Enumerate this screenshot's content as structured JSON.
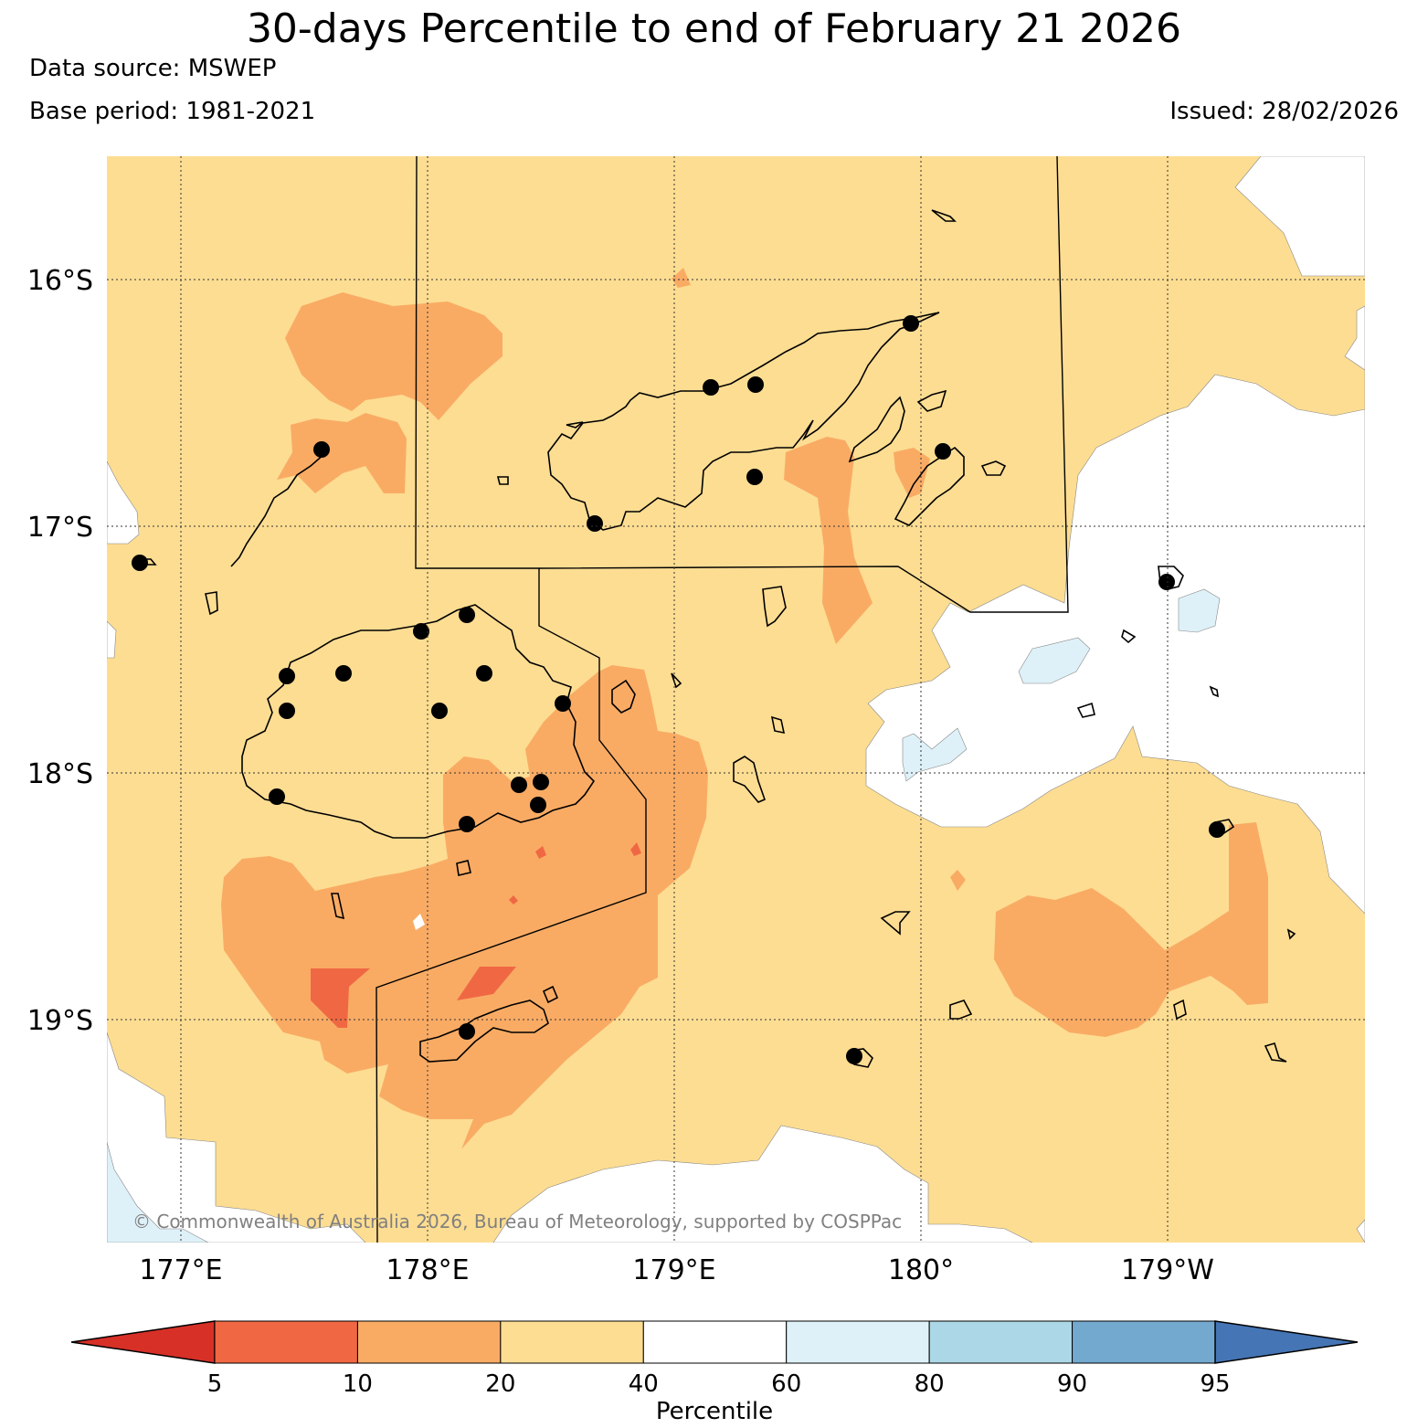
{
  "header": {
    "title": "30-days Percentile to end of February 21 2026",
    "data_source": "Data source: MSWEP",
    "base_period": "Base period: 1981-2021",
    "issued": "Issued: 28/02/2026"
  },
  "map": {
    "lat_labels": [
      "16°S",
      "17°S",
      "18°S",
      "19°S"
    ],
    "lon_labels": [
      "177°E",
      "178°E",
      "179°E",
      "180°",
      "179°W"
    ],
    "copyright": "© Commonwealth of Australia 2026, Bureau of Meteorology, supported by COSPPac",
    "region_colors": {
      "below_20": "#f9ab64",
      "20_40": "#fddd92",
      "40_60": "#ffffff",
      "60_80": "#dff1f8",
      "5_10": "#f06843"
    }
  },
  "colorbar": {
    "label": "Percentile",
    "ticks": [
      "5",
      "10",
      "20",
      "40",
      "60",
      "80",
      "90",
      "95"
    ],
    "colors": [
      "#d73027",
      "#f06843",
      "#f9ab64",
      "#fddd92",
      "#ffffff",
      "#dff1f8",
      "#acd7e6",
      "#74a9cf",
      "#4575b4"
    ]
  }
}
